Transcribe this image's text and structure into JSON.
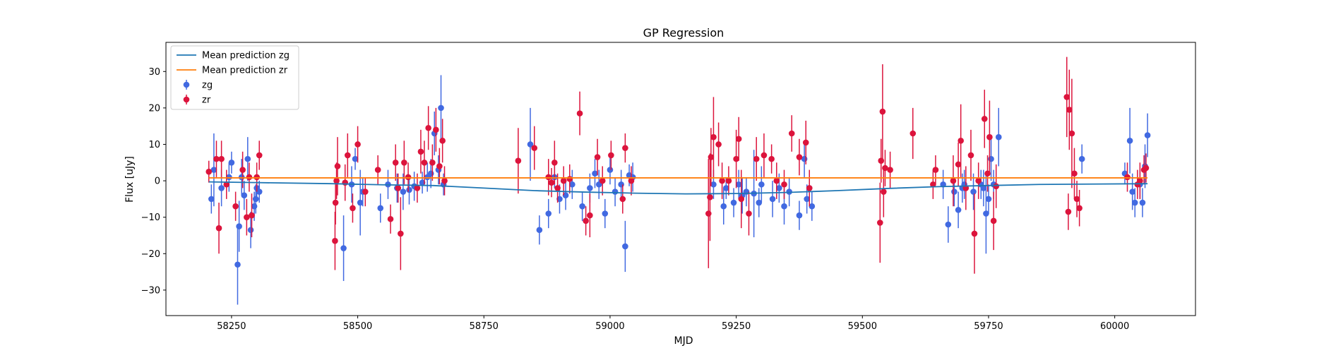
{
  "chart_data": {
    "type": "scatter",
    "title": "GP Regression",
    "xlabel": "MJD",
    "ylabel": "Flux [uJy]",
    "xlim": [
      58120,
      60160
    ],
    "ylim": [
      -37,
      38
    ],
    "x_ticks": [
      58250,
      58500,
      58750,
      59000,
      59250,
      59500,
      59750,
      60000
    ],
    "x_tick_labels": [
      "58250",
      "58500",
      "58750",
      "59000",
      "59250",
      "59500",
      "59750",
      "60000"
    ],
    "y_ticks": [
      -30,
      -20,
      -10,
      0,
      10,
      20,
      30
    ],
    "y_tick_labels": [
      "−30",
      "−20",
      "−10",
      "0",
      "10",
      "20",
      "30"
    ],
    "grid": false,
    "legend_position": "top-left",
    "lines": [
      {
        "name": "Mean prediction zg",
        "color": "#1f77b4",
        "x": [
          58205,
          58300,
          58450,
          58550,
          58650,
          58750,
          58850,
          58950,
          59050,
          59150,
          59250,
          59350,
          59450,
          59550,
          59650,
          59750,
          59850,
          59950,
          60065
        ],
        "y": [
          -0.3,
          -0.5,
          -0.8,
          -1.1,
          -1.3,
          -2.0,
          -2.7,
          -3.1,
          -3.4,
          -3.6,
          -3.5,
          -3.2,
          -2.7,
          -2.1,
          -1.6,
          -1.3,
          -1.0,
          -0.9,
          -0.8
        ]
      },
      {
        "name": "Mean prediction zr",
        "color": "#ff7f0e",
        "x": [
          58205,
          60065
        ],
        "y": [
          0.8,
          0.8
        ]
      }
    ],
    "series": [
      {
        "name": "zg",
        "color": "#4169e1",
        "x": [
          58210,
          58215,
          58230,
          58245,
          58250,
          58262,
          58265,
          58270,
          58275,
          58282,
          58288,
          58295,
          58298,
          58300,
          58305,
          58472,
          58488,
          58495,
          58505,
          58510,
          58545,
          58560,
          58578,
          58590,
          58602,
          58612,
          58628,
          58638,
          58645,
          58652,
          58660,
          58665,
          58670,
          58842,
          58860,
          58878,
          58890,
          58900,
          58912,
          58925,
          58945,
          58960,
          58970,
          58978,
          58990,
          59000,
          59010,
          59022,
          59030,
          59038,
          59045,
          59205,
          59225,
          59230,
          59245,
          59255,
          59262,
          59270,
          59285,
          59295,
          59300,
          59322,
          59335,
          59345,
          59355,
          59375,
          59385,
          59390,
          59395,
          59400,
          59660,
          59670,
          59682,
          59690,
          59698,
          59702,
          59720,
          59735,
          59740,
          59745,
          59750,
          59755,
          59760,
          59770,
          59935,
          60020,
          60030,
          60035,
          60040,
          60050,
          60055,
          60060,
          60065
        ],
        "y": [
          -5,
          3,
          -2,
          1,
          5,
          -23,
          -12.5,
          1,
          -4,
          6,
          -13.5,
          -7,
          -5,
          -2,
          -3,
          -18.5,
          -1,
          6,
          -6,
          -3,
          -7.5,
          -1,
          -2,
          -3,
          -2.5,
          -1.5,
          -0.5,
          1,
          2,
          13,
          3,
          20,
          -1,
          10,
          -13.5,
          -9,
          1,
          -5,
          -4,
          -1,
          -7,
          -2,
          2,
          -1,
          -9,
          3,
          -3,
          -1,
          -18,
          1.5,
          1,
          -1,
          -7,
          -2,
          -6,
          -1,
          -4,
          -3,
          -3.5,
          -6,
          -1,
          -5,
          -2,
          -7,
          -3,
          -9.5,
          6,
          -5,
          -2,
          -7,
          -1,
          -12,
          -3,
          -8,
          -2,
          -1,
          -3,
          -1,
          -2,
          -9,
          -5,
          6,
          -1,
          12,
          6,
          2,
          11,
          -3,
          -6,
          -1,
          -6,
          4,
          12.5
        ],
        "yerr": [
          4,
          10,
          5,
          4,
          3,
          11,
          7,
          5,
          4,
          6,
          5,
          4,
          4,
          3,
          3,
          9,
          5,
          3,
          9,
          4,
          4,
          4,
          4,
          5,
          4,
          4,
          3,
          4,
          4,
          6,
          4,
          9,
          3,
          10,
          4,
          4,
          3,
          4,
          4,
          4,
          4,
          4,
          4,
          4,
          4,
          4,
          4,
          4,
          7,
          3,
          4,
          4,
          5,
          3,
          4,
          4,
          5,
          4,
          12,
          4,
          5,
          5,
          4,
          5,
          4,
          4,
          5,
          4,
          4,
          4,
          4,
          5,
          4,
          5,
          4,
          4,
          5,
          4,
          5,
          11,
          4,
          6,
          4,
          8,
          4,
          3,
          9,
          5,
          4,
          4,
          4,
          6,
          6
        ]
      },
      {
        "name": "zr",
        "color": "#dc143c",
        "x": [
          58205,
          58220,
          58225,
          58230,
          58240,
          58258,
          58272,
          58280,
          58285,
          58290,
          58300,
          58305,
          58455,
          58456,
          58458,
          58460,
          58475,
          58480,
          58490,
          58500,
          58515,
          58540,
          58565,
          58575,
          58580,
          58585,
          58592,
          58600,
          58618,
          58625,
          58632,
          58640,
          58648,
          58655,
          58662,
          58668,
          58672,
          58818,
          58850,
          58878,
          58884,
          58890,
          58896,
          58908,
          58920,
          58940,
          58952,
          58960,
          58975,
          58985,
          59002,
          59025,
          59030,
          59042,
          59195,
          59198,
          59200,
          59205,
          59215,
          59222,
          59235,
          59250,
          59255,
          59260,
          59275,
          59290,
          59305,
          59320,
          59330,
          59345,
          59360,
          59375,
          59388,
          59395,
          59535,
          59537,
          59540,
          59542,
          59545,
          59555,
          59600,
          59640,
          59645,
          59680,
          59690,
          59695,
          59705,
          59715,
          59722,
          59730,
          59742,
          59748,
          59752,
          59760,
          59765,
          59905,
          59908,
          59910,
          59915,
          59920,
          59925,
          59930,
          60025,
          60045,
          60050,
          60058,
          60062
        ],
        "y": [
          2.5,
          6,
          -13,
          6,
          -1,
          -7,
          3,
          -10,
          1,
          -9.5,
          1,
          7,
          -16.5,
          -6,
          0,
          4,
          -0.5,
          7,
          -7.5,
          10,
          -3,
          3,
          -10.5,
          5,
          -2,
          -14.5,
          5,
          1,
          -2,
          8,
          5,
          14.5,
          5,
          14,
          4,
          11,
          0,
          5.5,
          9,
          1,
          -0.5,
          5,
          -2,
          0,
          0.5,
          18.5,
          -11,
          -9.5,
          6.5,
          0,
          7,
          -5,
          9,
          0,
          -9,
          -4.5,
          6.5,
          12,
          10,
          0,
          0,
          6,
          11.5,
          -5,
          -9,
          6,
          7,
          6,
          0,
          -1,
          13,
          6.5,
          10.5,
          -2,
          -11.5,
          5.5,
          19,
          -3,
          3.5,
          3,
          13,
          -1,
          3,
          0,
          4.5,
          11,
          -2,
          7,
          -14.5,
          0,
          17,
          2,
          12,
          -11,
          -1.5,
          23,
          -8.5,
          19.5,
          13,
          2,
          -5,
          -7.5,
          1,
          -1,
          0,
          3,
          3.5
        ],
        "yerr": [
          3,
          5,
          7,
          5,
          4,
          4,
          5,
          5,
          4,
          6,
          4,
          4,
          8,
          6,
          5,
          8,
          5,
          6,
          4,
          5,
          4,
          4,
          4,
          5,
          4,
          10,
          6,
          4,
          4,
          6,
          6,
          6,
          5,
          6,
          5,
          6,
          4,
          9,
          6,
          5,
          4,
          6,
          4,
          4,
          4,
          6,
          4,
          6,
          5,
          4,
          4,
          4,
          4,
          4,
          15,
          12,
          8,
          11,
          6,
          5,
          4,
          8,
          6,
          8,
          6,
          6,
          6,
          4,
          5,
          4,
          5,
          5,
          6,
          5,
          11,
          6,
          13,
          7,
          5,
          5,
          7,
          4,
          4,
          7,
          6,
          10,
          6,
          7,
          11,
          5,
          8,
          5,
          10,
          8,
          6,
          11,
          5,
          11,
          15,
          7,
          5,
          5,
          4,
          4,
          5,
          4,
          4
        ]
      }
    ]
  }
}
